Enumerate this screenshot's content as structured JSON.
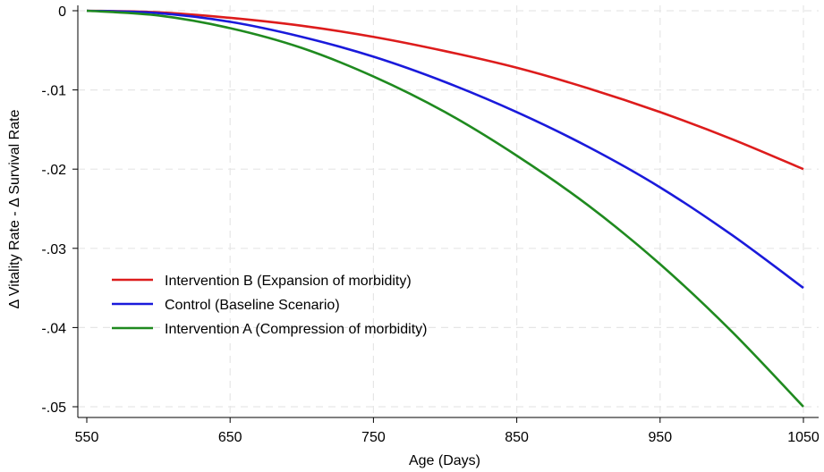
{
  "chart_data": {
    "type": "line",
    "title": "",
    "xlabel": "Age (Days)",
    "ylabel": "Δ Vitality Rate - Δ Survival Rate",
    "xlim": [
      550,
      1050
    ],
    "ylim": [
      -0.05,
      0
    ],
    "x_ticks": [
      550,
      650,
      750,
      850,
      950,
      1050
    ],
    "x_tick_labels": [
      "550",
      "650",
      "750",
      "850",
      "950",
      "1050"
    ],
    "y_ticks": [
      0,
      -0.01,
      -0.02,
      -0.03,
      -0.04,
      -0.05
    ],
    "y_tick_labels": [
      "0",
      "-.01",
      "-.02",
      "-.03",
      "-.04",
      "-.05"
    ],
    "grid": true,
    "legend_position": "lower-left",
    "x": [
      550,
      600,
      650,
      700,
      750,
      800,
      850,
      900,
      950,
      1000,
      1050
    ],
    "series": [
      {
        "name": "Intervention B (Expansion of morbidity)",
        "color": "#dd1c1c",
        "values": [
          0,
          -0.0002,
          -0.0009,
          -0.0019,
          -0.0033,
          -0.0051,
          -0.0072,
          -0.0098,
          -0.0128,
          -0.0162,
          -0.02
        ]
      },
      {
        "name": "Control (Baseline Scenario)",
        "color": "#1a1adb",
        "values": [
          0,
          -0.0003,
          -0.0014,
          -0.0033,
          -0.0058,
          -0.009,
          -0.0128,
          -0.0172,
          -0.0223,
          -0.0283,
          -0.035
        ]
      },
      {
        "name": "Intervention A (Compression of morbidity)",
        "color": "#1f8a1f",
        "values": [
          0,
          -0.0006,
          -0.0022,
          -0.0047,
          -0.0083,
          -0.0128,
          -0.0183,
          -0.0246,
          -0.032,
          -0.0405,
          -0.05
        ]
      }
    ]
  }
}
